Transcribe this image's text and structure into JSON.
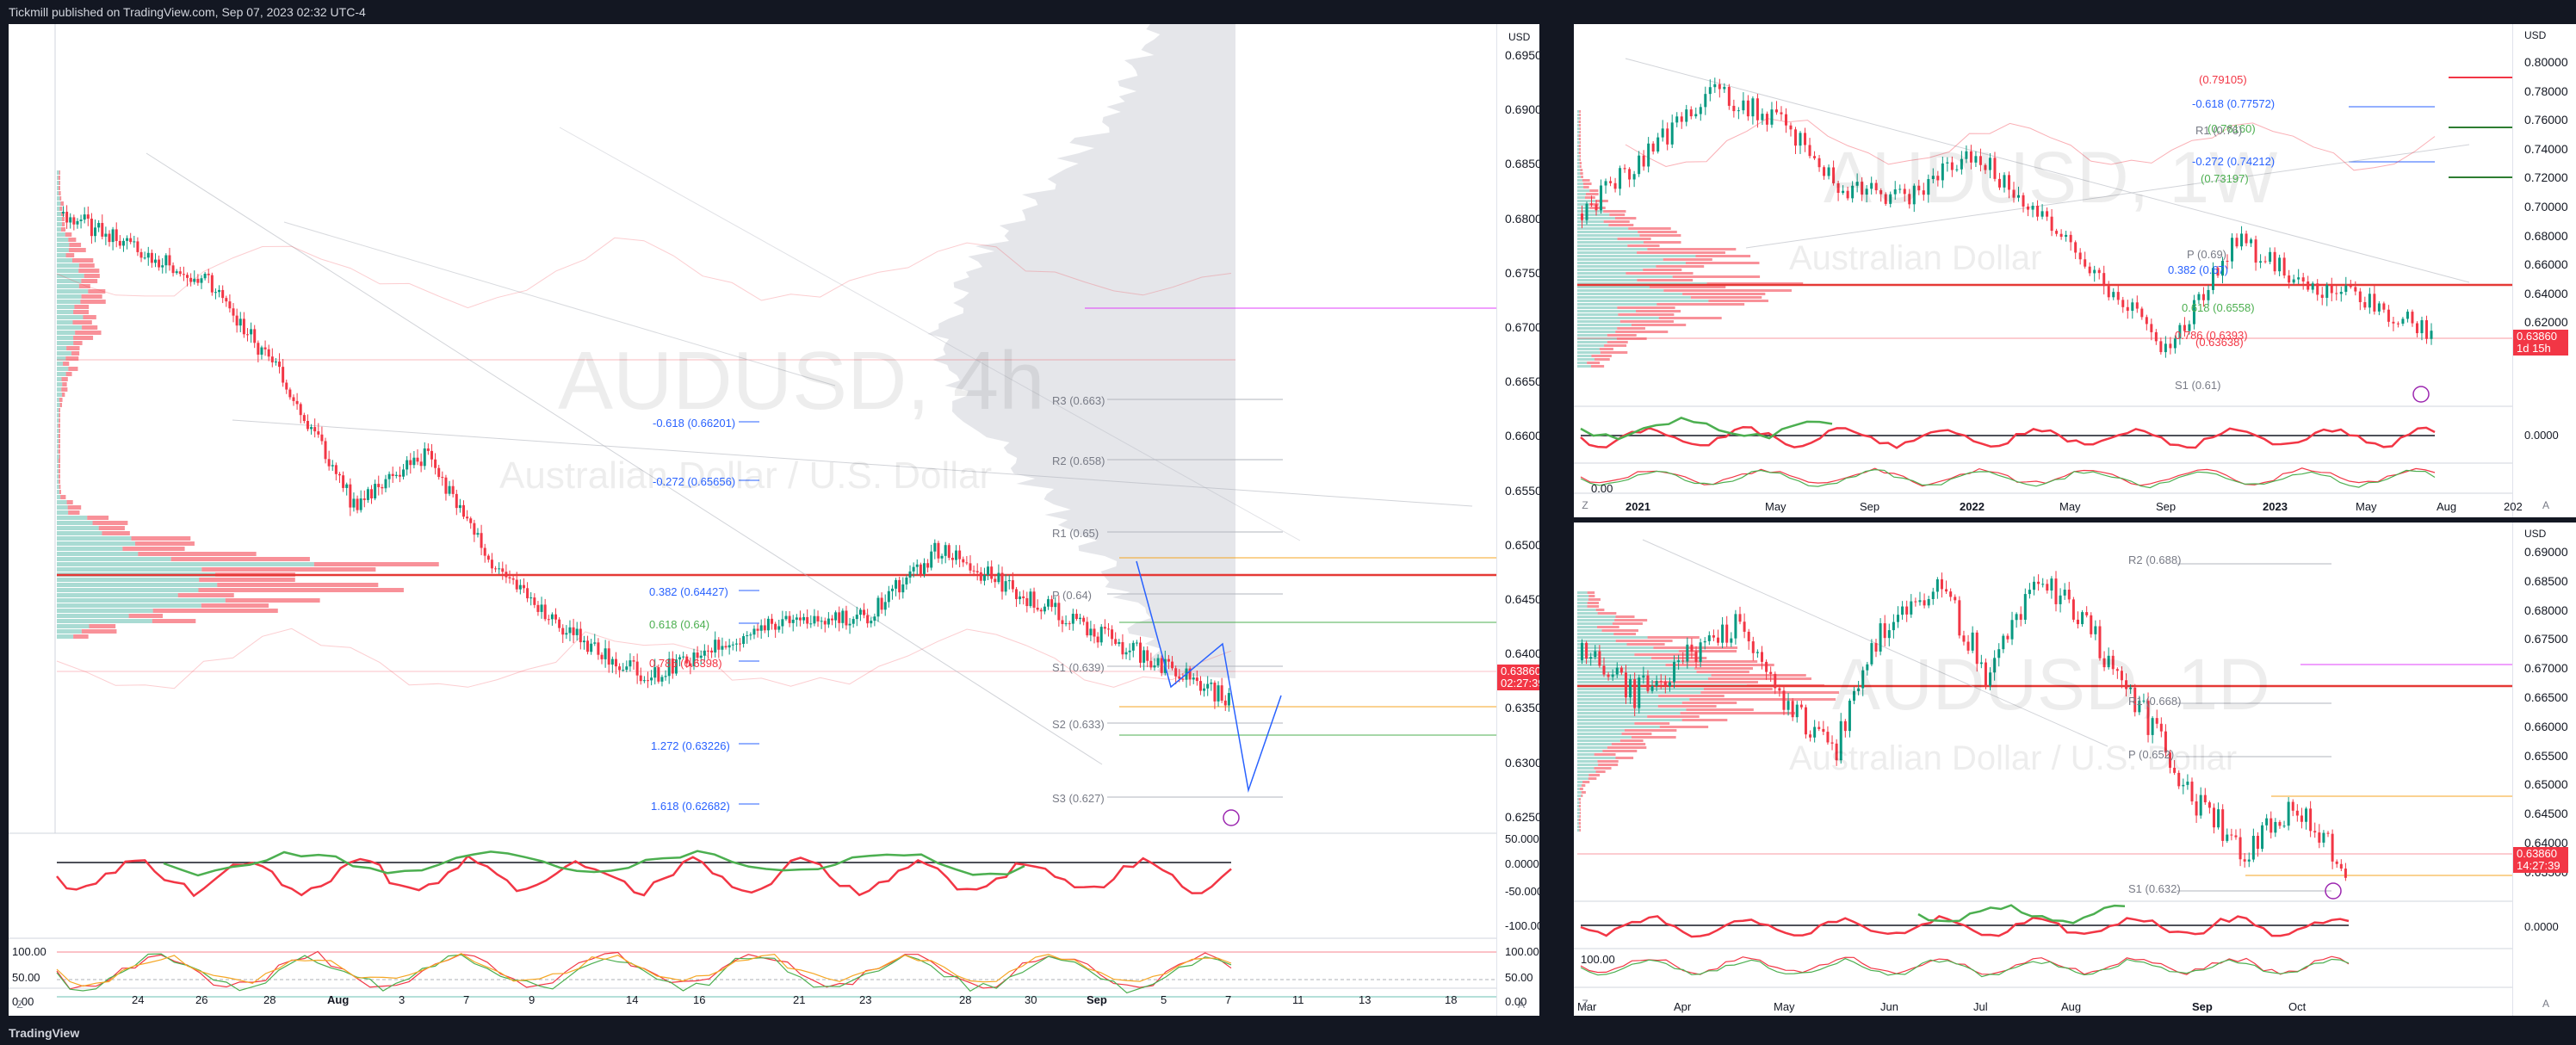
{
  "header": {
    "publish_text": "Tickmill published on TradingView.com, Sep 07, 2023 02:32 UTC-4"
  },
  "footer": {
    "brand": "TradingView"
  },
  "colors": {
    "bull": "#089981",
    "bear": "#f23645",
    "bg": "#131722",
    "pane": "#ffffff"
  },
  "left": {
    "watermark_title": "AUDUSD, 4h",
    "watermark_sub": "Australian Dollar / U.S. Dollar",
    "currency": "USD",
    "price_ticks": [
      "0.69500",
      "0.69000",
      "0.68500",
      "0.68000",
      "0.67500",
      "0.67000",
      "0.66500",
      "0.66000",
      "0.65500",
      "0.65000",
      "0.64500",
      "0.64000",
      "0.63500",
      "0.63000",
      "0.62500"
    ],
    "osc_ticks": [
      "50.0000",
      "0.0000",
      "-50.0000",
      "-100.0000"
    ],
    "osc2_ticks": [
      "100.00",
      "50.00",
      "0.00"
    ],
    "price_tag": {
      "price": "0.63860",
      "countdown": "02:27:39"
    },
    "fib_labels": [
      {
        "text": "-0.618 (0.66201)",
        "color": "#2962ff"
      },
      {
        "text": "-0.272 (0.65656)",
        "color": "#2962ff"
      },
      {
        "text": "0.382 (0.64427)",
        "color": "#2962ff"
      },
      {
        "text": "0.618 (0.64)",
        "color": "#4caf50"
      },
      {
        "text": "0.786 (0.6398)",
        "color": "#f23645"
      },
      {
        "text": "1.272 (0.63226)",
        "color": "#2962ff"
      },
      {
        "text": "1.618 (0.62682)",
        "color": "#2962ff"
      }
    ],
    "pivot_labels": [
      "R3 (0.663)",
      "R2 (0.658)",
      "R1 (0.65)",
      "P (0.64)",
      "S1 (0.639)",
      "S2 (0.633)",
      "S3 (0.627)"
    ],
    "x_ticks": [
      "24",
      "26",
      "28",
      "Aug",
      "3",
      "7",
      "9",
      "14",
      "16",
      "21",
      "23",
      "28",
      "30",
      "Sep",
      "5",
      "7",
      "11",
      "13",
      "18"
    ],
    "corner_z": "Z",
    "corner_a": "A"
  },
  "right_top": {
    "watermark_title": "AUDUSD, 1W",
    "watermark_sub": "Australian Dollar",
    "currency": "USD",
    "price_ticks": [
      "0.80000",
      "0.78000",
      "0.76000",
      "0.74000",
      "0.72000",
      "0.70000",
      "0.68000",
      "0.66000",
      "0.64000",
      "0.62000",
      "0.60000"
    ],
    "osc_ticks": [
      "0.0000"
    ],
    "osc2_ticks": [
      "0.00"
    ],
    "price_tag": {
      "price": "0.63860",
      "countdown": "1d 15h"
    },
    "labels": [
      {
        "text": "(0.79105)",
        "color": "#f23645"
      },
      {
        "text": "-0.618 (0.77572)",
        "color": "#2962ff"
      },
      {
        "text": "(0.76160)",
        "color": "#4caf50"
      },
      {
        "text": "R1 (0.76)",
        "color": "#787b86"
      },
      {
        "text": "-0.272 (0.74212)",
        "color": "#2962ff"
      },
      {
        "text": "(0.73197)",
        "color": "#4caf50"
      },
      {
        "text": "P (0.69)",
        "color": "#787b86"
      },
      {
        "text": "0.382 (0.67)",
        "color": "#2962ff"
      },
      {
        "text": "0.618 (0.6558)",
        "color": "#4caf50"
      },
      {
        "text": "0.786 (0.6393)",
        "color": "#f23645"
      },
      {
        "text": "(0.63638)",
        "color": "#f23645"
      },
      {
        "text": "S1 (0.61)",
        "color": "#787b86"
      }
    ],
    "x_ticks": [
      "2021",
      "May",
      "Sep",
      "2022",
      "May",
      "Sep",
      "2023",
      "May",
      "Aug",
      "202"
    ],
    "corner_z": "Z",
    "corner_a": "A"
  },
  "right_bottom": {
    "watermark_title": "AUDUSD, 1D",
    "watermark_sub": "Australian Dollar / U.S. Dollar",
    "currency": "USD",
    "price_ticks": [
      "0.69000",
      "0.68500",
      "0.68000",
      "0.67500",
      "0.67000",
      "0.66500",
      "0.66000",
      "0.65500",
      "0.65000",
      "0.64500",
      "0.64000",
      "0.63500"
    ],
    "osc_ticks": [
      "0.0000"
    ],
    "osc2_ticks": [
      "100.00"
    ],
    "price_tag": {
      "price": "0.63860",
      "countdown": "14:27:39"
    },
    "labels": [
      {
        "text": "R2 (0.688)",
        "color": "#787b86"
      },
      {
        "text": "R1 (0.668)",
        "color": "#787b86"
      },
      {
        "text": "P (0.652)",
        "color": "#787b86"
      },
      {
        "text": "S1 (0.632)",
        "color": "#787b86"
      }
    ],
    "x_ticks": [
      "Mar",
      "Apr",
      "May",
      "Jun",
      "Jul",
      "Aug",
      "Sep",
      "Oct"
    ],
    "corner_z": "Z",
    "corner_a": "A"
  }
}
